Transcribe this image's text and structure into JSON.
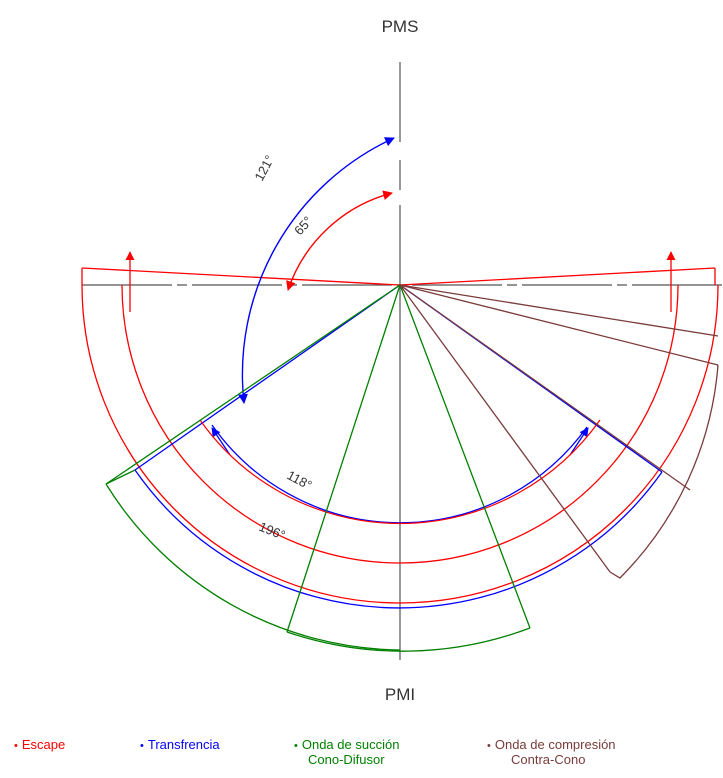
{
  "labels": {
    "top": "PMS",
    "bottom": "PMI"
  },
  "angles": {
    "blue_top": "121°",
    "red_top": "65°",
    "blue_bottom": "118°",
    "red_bottom": "196°"
  },
  "legend": [
    {
      "key": "escape",
      "bullet": "•",
      "line1": "Escape",
      "line2": "",
      "color": "#ff0000"
    },
    {
      "key": "transfer",
      "bullet": "•",
      "line1": "Transfrencia",
      "line2": "",
      "color": "#0000ff"
    },
    {
      "key": "suction",
      "bullet": "•",
      "line1": "Onda de succión",
      "line2": "Cono-Difusor",
      "color": "#008000"
    },
    {
      "key": "compression",
      "bullet": "•",
      "line1": "Onda de compresión",
      "line2": "Contra-Cono",
      "color": "#7a3b3b"
    }
  ],
  "colors": {
    "red": "#ff0000",
    "blue": "#0000ff",
    "green": "#008000",
    "brown": "#7a3b3b",
    "axis": "#555555"
  }
}
